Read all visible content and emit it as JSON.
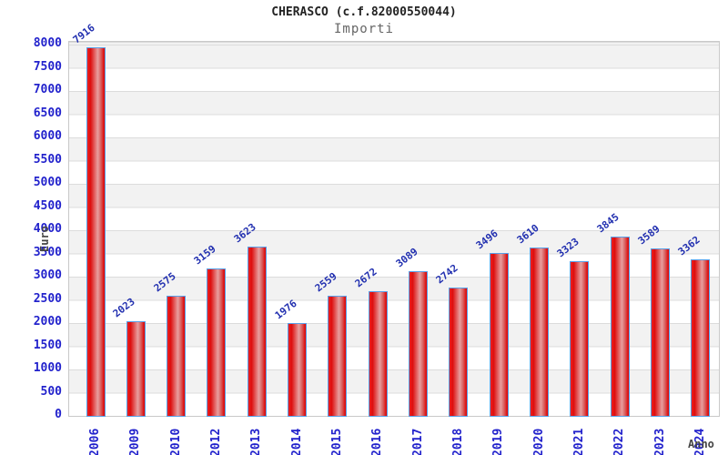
{
  "header": {
    "title": "CHERASCO (c.f.82000550044)",
    "subtitle": "Importi"
  },
  "chart_data": {
    "type": "bar",
    "title": "CHERASCO (c.f.82000550044)",
    "subtitle": "Importi",
    "xlabel": "Anno",
    "ylabel": "Euro",
    "categories": [
      "2006",
      "2009",
      "2010",
      "2012",
      "2013",
      "2014",
      "2015",
      "2016",
      "2017",
      "2018",
      "2019",
      "2020",
      "2021",
      "2022",
      "2023",
      "2024"
    ],
    "values": [
      7916,
      2023,
      2575,
      3159,
      3623,
      1976,
      2559,
      2672,
      3089,
      2742,
      3496,
      3610,
      3323,
      3845,
      3589,
      3362
    ],
    "ylim": [
      0,
      8000
    ],
    "ytick_step": 500,
    "yticks": [
      0,
      500,
      1000,
      1500,
      2000,
      2500,
      3000,
      3500,
      4000,
      4500,
      5000,
      5500,
      6000,
      6500,
      7000,
      7500,
      8000
    ],
    "grid": "horizontal alternating stripes",
    "legend": "none",
    "colors": {
      "bar_fill": "#dd0d0d",
      "bar_fill_highlight": "#e89f9f",
      "bar_border": "#58a0e8",
      "tick_label": "#2222cc",
      "value_label": "#2230b0",
      "stripe_gray": "#f2f2f2",
      "gridline": "#dcdcdc",
      "title_text": "#222222",
      "subtitle_text": "#666666",
      "axis_title_text": "#444444"
    }
  }
}
